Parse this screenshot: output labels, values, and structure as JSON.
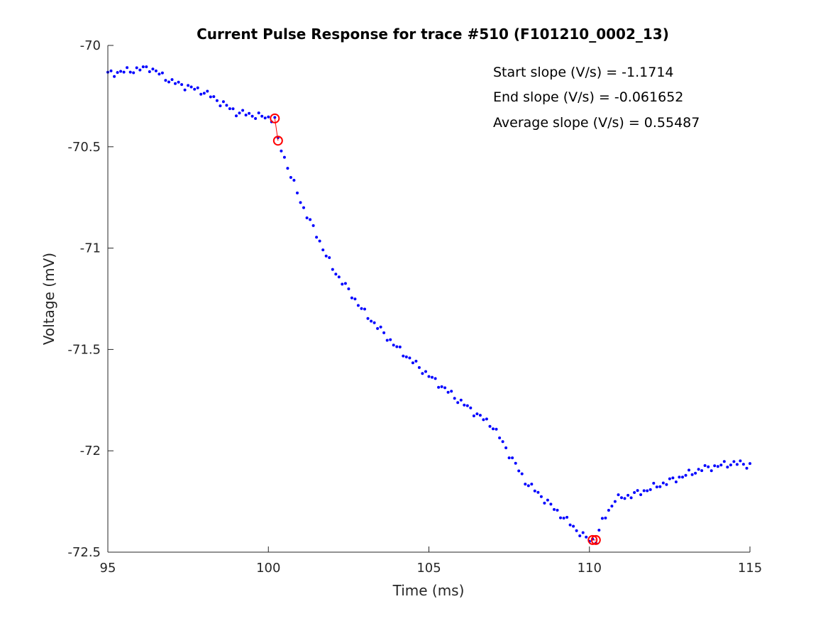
{
  "chart_data": {
    "type": "scatter",
    "title": "Current Pulse Response for trace #510 (F101210_0002_13)",
    "xlabel": "Time (ms)",
    "ylabel": "Voltage (mV)",
    "xlim": [
      95,
      115
    ],
    "ylim": [
      -72.5,
      -70
    ],
    "xticks": [
      95,
      100,
      105,
      110,
      115
    ],
    "yticks": [
      -70,
      -70.5,
      -71,
      -71.5,
      -72,
      -72.5
    ],
    "xtick_labels": [
      "95",
      "100",
      "105",
      "110",
      "115"
    ],
    "ytick_labels": [
      "-70",
      "-70.5",
      "-71",
      "-71.5",
      "-72",
      "-72.5"
    ],
    "grid": false,
    "annotations": [
      "Start slope (V/s) = -1.1714",
      "End slope (V/s) = -0.061652",
      "Average slope (V/s) = 0.55487"
    ],
    "colors": {
      "trace": "#0000ff",
      "markers": "#ff0000",
      "axes": "#262626"
    },
    "anchor_points": [
      [
        95.0,
        -70.14
      ],
      [
        96.3,
        -70.11
      ],
      [
        97.0,
        -70.18
      ],
      [
        98.0,
        -70.23
      ],
      [
        99.0,
        -70.33
      ],
      [
        100.1,
        -70.36
      ],
      [
        100.2,
        -70.36
      ],
      [
        100.3,
        -70.47
      ],
      [
        101.0,
        -70.77
      ],
      [
        102.0,
        -71.1
      ],
      [
        103.0,
        -71.32
      ],
      [
        104.0,
        -71.49
      ],
      [
        105.0,
        -71.63
      ],
      [
        106.0,
        -71.76
      ],
      [
        107.0,
        -71.88
      ],
      [
        108.0,
        -72.15
      ],
      [
        109.0,
        -72.3
      ],
      [
        109.8,
        -72.42
      ],
      [
        110.0,
        -72.44
      ],
      [
        110.2,
        -72.44
      ],
      [
        110.4,
        -72.35
      ],
      [
        110.8,
        -72.24
      ],
      [
        111.5,
        -72.21
      ],
      [
        112.5,
        -72.15
      ],
      [
        113.5,
        -72.09
      ],
      [
        114.5,
        -72.06
      ],
      [
        115.0,
        -72.07
      ]
    ],
    "highlight_markers": [
      {
        "x": 100.2,
        "y": -70.36
      },
      {
        "x": 100.3,
        "y": -70.47
      },
      {
        "x": 110.1,
        "y": -72.44
      },
      {
        "x": 110.2,
        "y": -72.44
      }
    ]
  }
}
